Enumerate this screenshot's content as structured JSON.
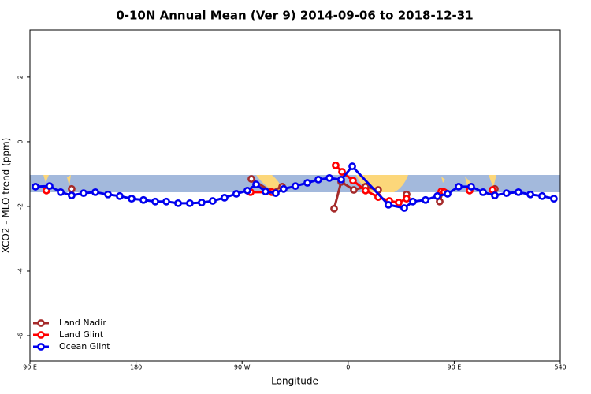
{
  "chart_data": {
    "type": "line",
    "title": "0-10N Annual Mean (Ver 9)   2014-09-06 to 2018-12-31",
    "x_label": "Longitude",
    "y_label": "XCO2 - MLO trend (ppm)",
    "xlim": [
      90,
      540
    ],
    "xticks": [
      {
        "value": 90,
        "label": "90 E"
      },
      180,
      {
        "value": 270,
        "label": "90 W"
      },
      {
        "value": 360,
        "label": "0"
      },
      {
        "value": 450,
        "label": "90 E"
      },
      540
    ],
    "ylim": [
      -6.78,
      3.46
    ],
    "yticks": [
      -6,
      -4,
      -2,
      0,
      2
    ],
    "legend": "bottom-left",
    "series": [
      {
        "name": "Land Nadir",
        "color": "#a52a2a",
        "x": [
          125.4,
          null,
          277.9,
          294.6,
          304.0,
          null,
          348.1,
          354.1,
          364.8,
          374.8,
          385.5,
          null,
          409.6,
          null,
          437.7,
          440.3,
          null,
          484.5
        ],
        "values": [
          -1.46,
          null,
          -1.15,
          -1.54,
          -1.39,
          null,
          -2.07,
          -1.24,
          -1.49,
          -1.39,
          -1.49,
          null,
          -1.63,
          null,
          -1.85,
          -1.54,
          null,
          -1.46
        ]
      },
      {
        "name": "Land Glint",
        "color": "#ff0000",
        "x": [
          104.0,
          null,
          277.2,
          295.3,
          null,
          349.4,
          354.8,
          364.1,
          374.8,
          385.5,
          394.9,
          402.9,
          409.6,
          null,
          439.0,
          441.6,
          null,
          463.1,
          null,
          482.5
        ],
        "values": [
          -1.51,
          null,
          -1.56,
          -1.56,
          null,
          -0.73,
          -0.93,
          -1.2,
          -1.51,
          -1.71,
          -1.83,
          -1.88,
          -1.76,
          null,
          -1.54,
          -1.56,
          null,
          -1.51,
          null,
          -1.49
        ]
      },
      {
        "name": "Ocean Glint",
        "color": "#0000ee",
        "x": [
          94.7,
          106.7,
          116.1,
          125.4,
          135.5,
          145.5,
          156.2,
          166.2,
          176.3,
          186.3,
          196.3,
          205.7,
          215.7,
          225.7,
          235.7,
          245.1,
          255.1,
          265.1,
          274.5,
          281.9,
          289.9,
          298.6,
          305.3,
          315.3,
          325.4,
          334.7,
          344.1,
          354.1,
          363.5,
          394.2,
          407.6,
          415.0,
          425.7,
          435.7,
          444.4,
          453.8,
          464.4,
          474.5,
          484.5,
          494.5,
          504.5,
          514.6,
          524.6,
          534.6
        ],
        "values": [
          -1.39,
          -1.37,
          -1.56,
          -1.66,
          -1.59,
          -1.56,
          -1.63,
          -1.68,
          -1.76,
          -1.8,
          -1.85,
          -1.85,
          -1.9,
          -1.9,
          -1.88,
          -1.83,
          -1.73,
          -1.61,
          -1.51,
          -1.32,
          -1.54,
          -1.59,
          -1.46,
          -1.37,
          -1.27,
          -1.17,
          -1.12,
          -1.17,
          -0.76,
          -1.95,
          -2.05,
          -1.85,
          -1.8,
          -1.68,
          -1.61,
          -1.39,
          -1.39,
          -1.56,
          -1.66,
          -1.59,
          -1.56,
          -1.63,
          -1.68,
          -1.76
        ]
      }
    ]
  }
}
